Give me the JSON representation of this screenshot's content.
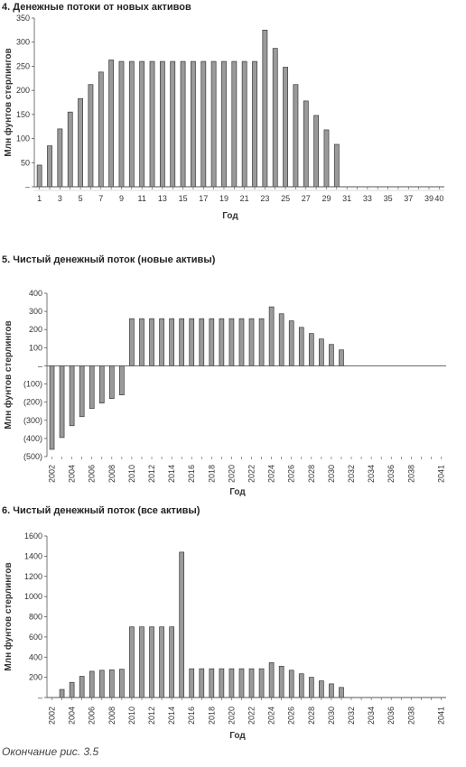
{
  "caption": "Окончание рис. 3.5",
  "chart_data": [
    {
      "type": "bar",
      "title": "4. Денежные потоки от новых активов",
      "xlabel": "Год",
      "ylabel": "Млн фунтов стерлингов",
      "ylim": [
        0,
        350
      ],
      "y_ticks": [
        "–",
        "50",
        "100",
        "150",
        "200",
        "250",
        "300",
        "350"
      ],
      "x_tick_labels": [
        "1",
        "3",
        "5",
        "7",
        "9",
        "11",
        "13",
        "15",
        "17",
        "19",
        "21",
        "23",
        "25",
        "27",
        "29",
        "31",
        "33",
        "35",
        "37",
        "39",
        "40"
      ],
      "categories": [
        1,
        2,
        3,
        4,
        5,
        6,
        7,
        8,
        9,
        10,
        11,
        12,
        13,
        14,
        15,
        16,
        17,
        18,
        19,
        20,
        21,
        22,
        23,
        24,
        25,
        26,
        27,
        28,
        29,
        30,
        31,
        32,
        33,
        34,
        35,
        36,
        37,
        38,
        39,
        40
      ],
      "values": [
        45,
        85,
        120,
        155,
        183,
        212,
        238,
        263,
        260,
        260,
        260,
        260,
        260,
        260,
        260,
        260,
        260,
        260,
        260,
        260,
        260,
        260,
        325,
        287,
        248,
        212,
        178,
        148,
        118,
        88,
        0,
        0,
        0,
        0,
        0,
        0,
        0,
        0,
        0,
        0
      ]
    },
    {
      "type": "bar",
      "title": "5. Чистый денежный поток (новые активы)",
      "xlabel": "Год",
      "ylabel": "Млн фунтов стерлингов",
      "ylim": [
        -500,
        400
      ],
      "y_ticks": [
        "(500)",
        "(400)",
        "(300)",
        "(200)",
        "(100)",
        "–",
        "100",
        "200",
        "300",
        "400"
      ],
      "x_tick_labels": [
        "2002",
        "2004",
        "2006",
        "2008",
        "2010",
        "2012",
        "2014",
        "2016",
        "2018",
        "2020",
        "2022",
        "2024",
        "2026",
        "2028",
        "2030",
        "2032",
        "2034",
        "2036",
        "2038",
        "2041"
      ],
      "categories": [
        2002,
        2003,
        2004,
        2005,
        2006,
        2007,
        2008,
        2009,
        2010,
        2011,
        2012,
        2013,
        2014,
        2015,
        2016,
        2017,
        2018,
        2019,
        2020,
        2021,
        2022,
        2023,
        2024,
        2025,
        2026,
        2027,
        2028,
        2029,
        2030,
        2031,
        2032,
        2033,
        2034,
        2035,
        2036,
        2037,
        2038,
        2039,
        2040,
        2041
      ],
      "values": [
        -460,
        -395,
        -330,
        -280,
        -235,
        -205,
        -180,
        -160,
        260,
        260,
        260,
        260,
        260,
        260,
        260,
        260,
        260,
        260,
        260,
        260,
        260,
        260,
        325,
        287,
        248,
        212,
        178,
        148,
        118,
        88,
        0,
        0,
        0,
        0,
        0,
        0,
        0,
        0,
        0,
        0
      ]
    },
    {
      "type": "bar",
      "title": "6. Чистый денежный поток (все активы)",
      "xlabel": "Год",
      "ylabel": "Млн фунтов стерлингов",
      "ylim": [
        0,
        1600
      ],
      "y_ticks": [
        "–",
        "200",
        "400",
        "600",
        "800",
        "1000",
        "1200",
        "1400",
        "1600"
      ],
      "x_tick_labels": [
        "2002",
        "2004",
        "2006",
        "2008",
        "2010",
        "2012",
        "2014",
        "2016",
        "2018",
        "2020",
        "2022",
        "2024",
        "2026",
        "2028",
        "2030",
        "2032",
        "2034",
        "2036",
        "2038",
        "2041"
      ],
      "categories": [
        2002,
        2003,
        2004,
        2005,
        2006,
        2007,
        2008,
        2009,
        2010,
        2011,
        2012,
        2013,
        2014,
        2015,
        2016,
        2017,
        2018,
        2019,
        2020,
        2021,
        2022,
        2023,
        2024,
        2025,
        2026,
        2027,
        2028,
        2029,
        2030,
        2031,
        2032,
        2033,
        2034,
        2035,
        2036,
        2037,
        2038,
        2039,
        2040,
        2041
      ],
      "values": [
        0,
        80,
        150,
        210,
        260,
        270,
        275,
        280,
        700,
        700,
        700,
        700,
        700,
        1440,
        285,
        285,
        285,
        285,
        285,
        285,
        285,
        285,
        345,
        310,
        270,
        235,
        200,
        165,
        135,
        100,
        0,
        0,
        0,
        0,
        0,
        0,
        0,
        0,
        0,
        0
      ]
    }
  ]
}
